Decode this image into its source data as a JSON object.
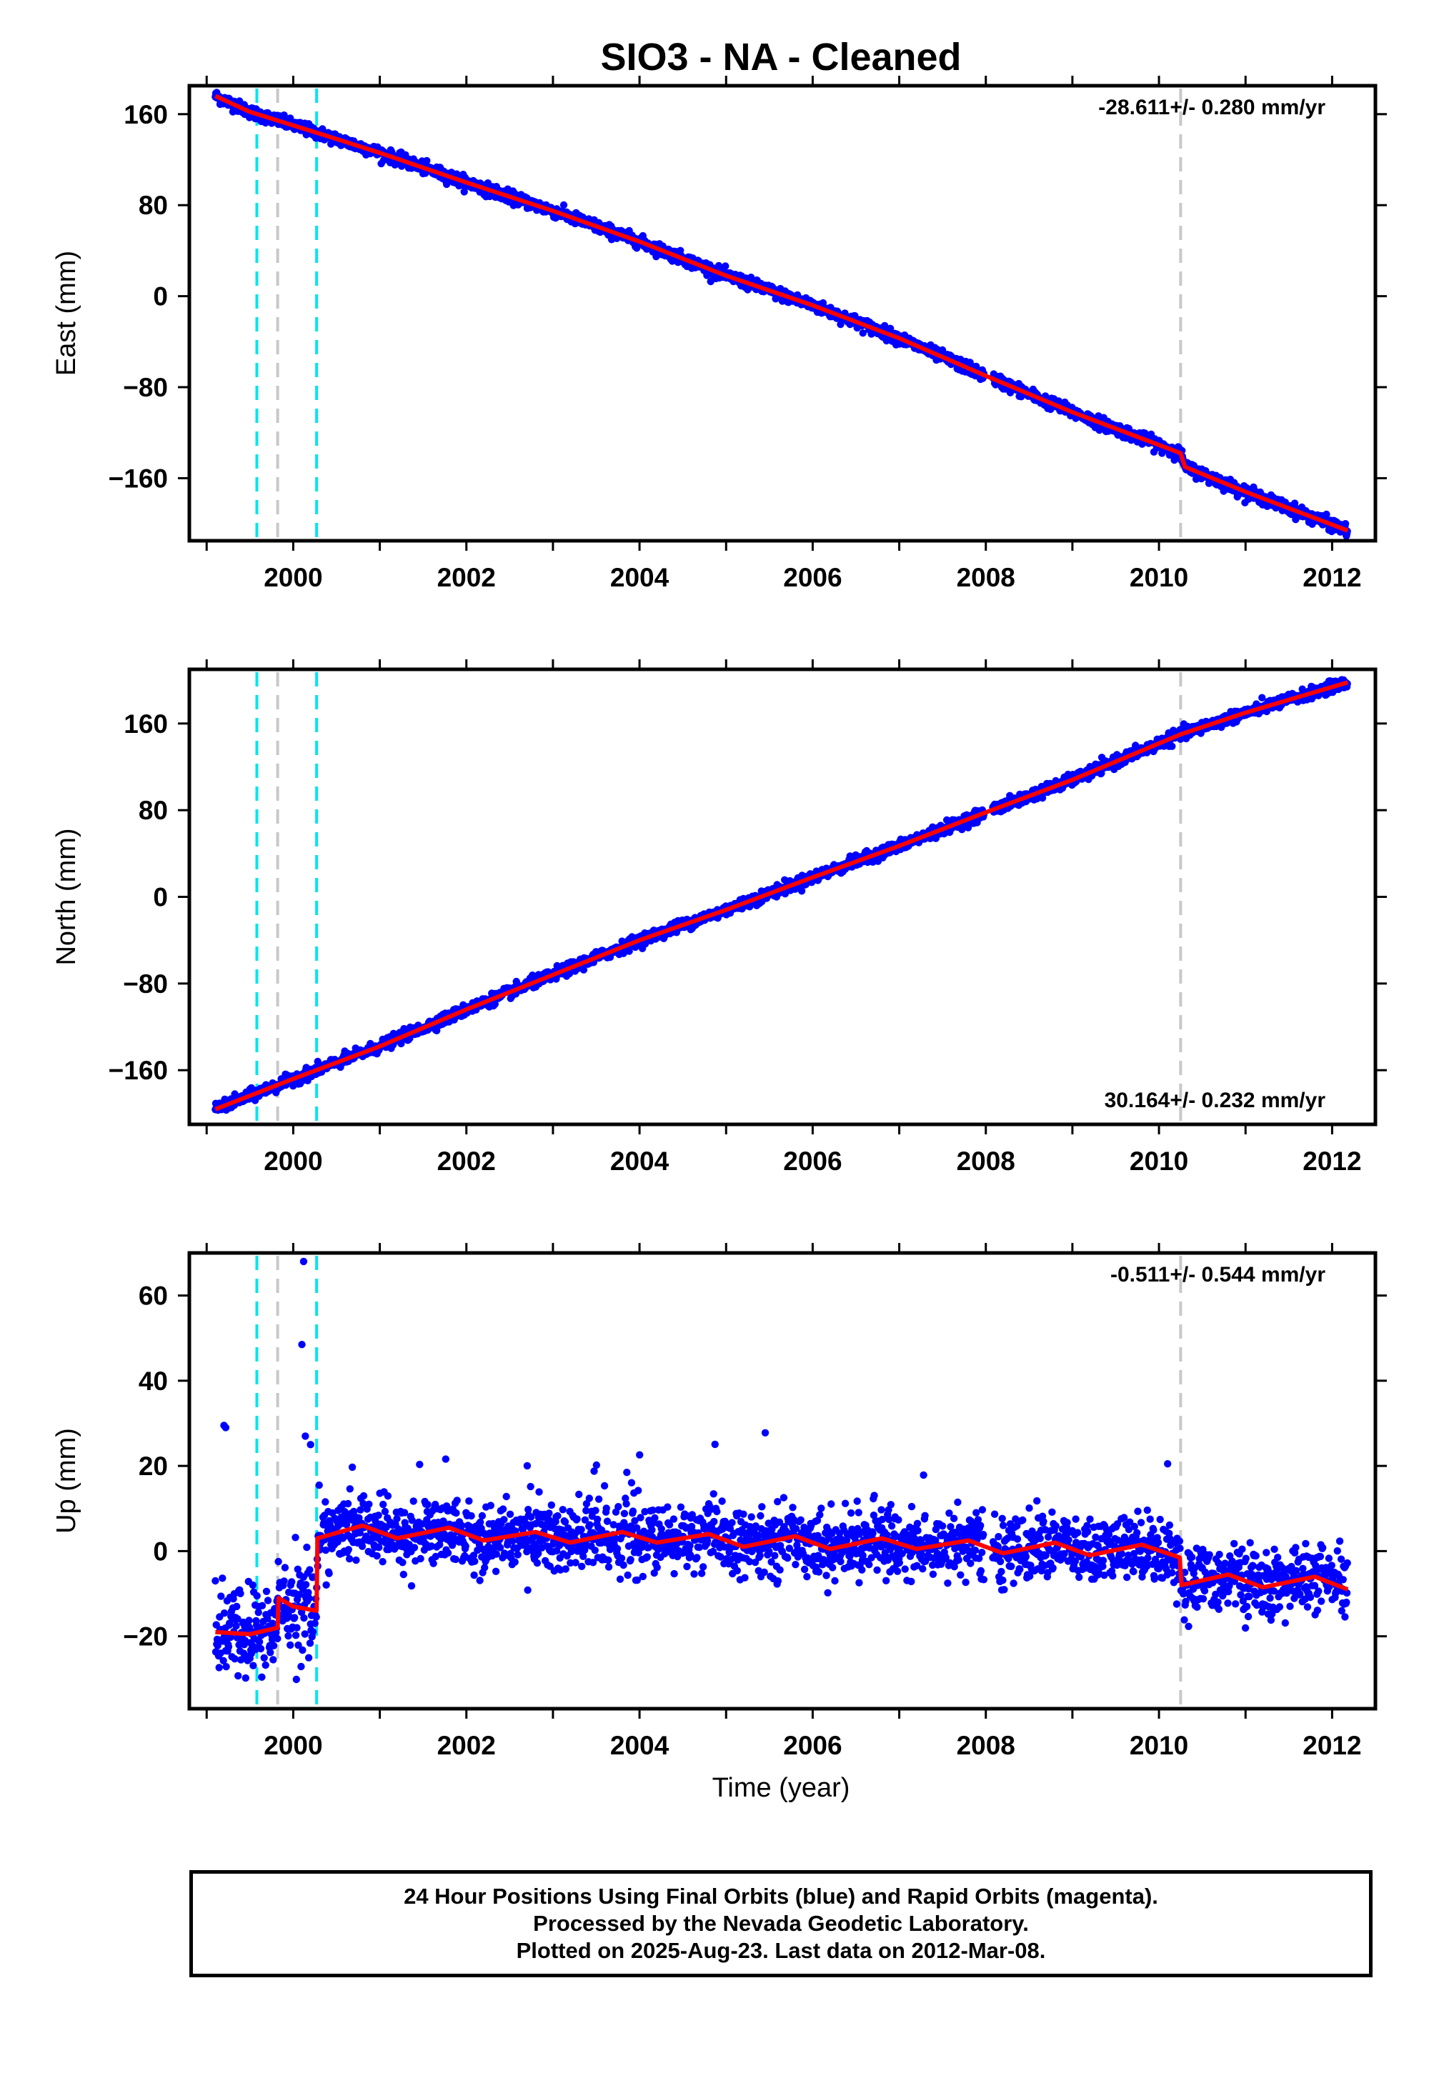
{
  "chart_data": {
    "type": "scatter",
    "title": "SIO3  - NA - Cleaned",
    "x_label": "Time (year)",
    "x_range": [
      1998.8,
      2012.5
    ],
    "x_ticks": [
      2000,
      2002,
      2004,
      2006,
      2008,
      2010,
      2012
    ],
    "x_tick_labels": [
      "2000",
      "2002",
      "2004",
      "2006",
      "2008",
      "2010",
      "2012"
    ],
    "data_start": 1999.1,
    "data_end": 2012.18,
    "vertical_markers": [
      {
        "x": 1999.58,
        "style": "dashed",
        "color": "#00e5ee"
      },
      {
        "x": 1999.82,
        "style": "dashed",
        "color": "#c8c8c8"
      },
      {
        "x": 2000.27,
        "style": "dashed",
        "color": "#00e5ee"
      },
      {
        "x": 2010.25,
        "style": "dashed",
        "color": "#c8c8c8"
      }
    ],
    "colors": {
      "points": "#0000ff",
      "model": "#ff0000"
    },
    "panels": [
      {
        "name": "east",
        "ylabel": "East (mm)",
        "ylim": [
          -215,
          185
        ],
        "y_ticks": [
          160,
          80,
          0,
          -80,
          -160
        ],
        "y_tick_labels": [
          "160",
          "80",
          "0",
          "−80",
          "−160"
        ],
        "rate_text": "-28.611+/- 0.280 mm/yr",
        "rate_position": "top-right",
        "model_trend": [
          [
            1999.1,
            176
          ],
          [
            1999.5,
            162
          ],
          [
            2000.3,
            143
          ],
          [
            2001.0,
            126
          ],
          [
            2002.0,
            100
          ],
          [
            2003.0,
            75
          ],
          [
            2004.0,
            48
          ],
          [
            2005.0,
            18
          ],
          [
            2006.0,
            -8
          ],
          [
            2007.0,
            -37
          ],
          [
            2008.0,
            -70
          ],
          [
            2009.0,
            -102
          ],
          [
            2010.25,
            -138
          ],
          [
            2010.3,
            -150
          ],
          [
            2011.0,
            -172
          ],
          [
            2012.18,
            -206
          ]
        ]
      },
      {
        "name": "north",
        "ylabel": "North (mm)",
        "ylim": [
          -210,
          210
        ],
        "y_ticks": [
          160,
          80,
          0,
          -80,
          -160
        ],
        "y_tick_labels": [
          "160",
          "80",
          "0",
          "−80",
          "−160"
        ],
        "rate_text": "30.164+/- 0.232 mm/yr",
        "rate_position": "bottom-right",
        "model_trend": [
          [
            1999.1,
            -196
          ],
          [
            2000.0,
            -168
          ],
          [
            2001.0,
            -138
          ],
          [
            2002.0,
            -104
          ],
          [
            2003.0,
            -72
          ],
          [
            2004.0,
            -40
          ],
          [
            2005.0,
            -12
          ],
          [
            2006.0,
            18
          ],
          [
            2007.0,
            47
          ],
          [
            2008.0,
            78
          ],
          [
            2009.0,
            108
          ],
          [
            2010.25,
            150
          ],
          [
            2011.0,
            170
          ],
          [
            2012.18,
            198
          ]
        ]
      },
      {
        "name": "up",
        "ylabel": "Up (mm)",
        "ylim": [
          -37,
          70
        ],
        "y_ticks": [
          60,
          40,
          20,
          0,
          -20
        ],
        "y_tick_labels": [
          "60",
          "40",
          "20",
          "0",
          "−20"
        ],
        "rate_text": "-0.511+/- 0.544 mm/yr",
        "rate_position": "top-right",
        "model_trend": [
          [
            1999.1,
            -19
          ],
          [
            1999.5,
            -19.5
          ],
          [
            1999.82,
            -18
          ],
          [
            1999.83,
            -11
          ],
          [
            2000.0,
            -13
          ],
          [
            2000.27,
            -14
          ],
          [
            2000.28,
            3
          ],
          [
            2000.8,
            6
          ],
          [
            2001.2,
            3
          ],
          [
            2001.8,
            5.5
          ],
          [
            2002.2,
            2.5
          ],
          [
            2002.8,
            4.5
          ],
          [
            2003.2,
            2
          ],
          [
            2003.8,
            4.5
          ],
          [
            2004.2,
            2
          ],
          [
            2004.8,
            4
          ],
          [
            2005.2,
            1
          ],
          [
            2005.8,
            3.5
          ],
          [
            2006.2,
            0.5
          ],
          [
            2006.8,
            3
          ],
          [
            2007.2,
            0.5
          ],
          [
            2007.8,
            2.5
          ],
          [
            2008.2,
            -0.5
          ],
          [
            2008.8,
            2
          ],
          [
            2009.2,
            -1
          ],
          [
            2009.8,
            1.5
          ],
          [
            2010.24,
            -1.5
          ],
          [
            2010.26,
            -8
          ],
          [
            2010.8,
            -5.5
          ],
          [
            2011.2,
            -8.5
          ],
          [
            2011.8,
            -6
          ],
          [
            2012.18,
            -9
          ]
        ]
      }
    ]
  },
  "caption": {
    "line1": "24 Hour Positions Using Final Orbits (blue) and Rapid Orbits (magenta).",
    "line2": "Processed by the Nevada Geodetic Laboratory.",
    "line3": "Plotted on 2025-Aug-23. Last data on 2012-Mar-08."
  }
}
